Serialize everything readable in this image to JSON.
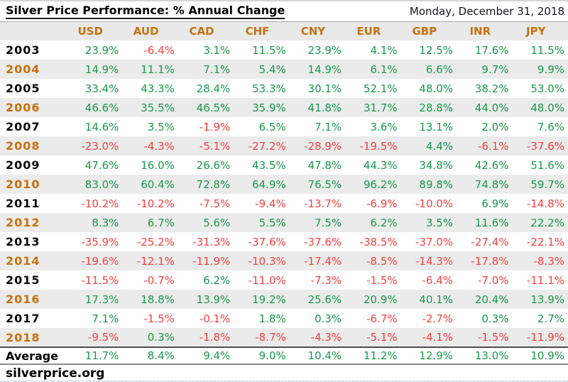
{
  "header": {
    "title": "Silver Price Performance: % Annual Change",
    "date": "Monday, December 31, 2018"
  },
  "chart_data": {
    "type": "table",
    "title": "Silver Price Performance: % Annual Change",
    "columns": [
      "USD",
      "AUD",
      "CAD",
      "CHF",
      "CNY",
      "EUR",
      "GBP",
      "INR",
      "JPY"
    ],
    "years": [
      "2003",
      "2004",
      "2005",
      "2006",
      "2007",
      "2008",
      "2009",
      "2010",
      "2011",
      "2012",
      "2013",
      "2014",
      "2015",
      "2016",
      "2017",
      "2018"
    ],
    "values": [
      [
        23.9,
        -6.4,
        3.1,
        11.5,
        23.9,
        4.1,
        12.5,
        17.6,
        11.5
      ],
      [
        14.9,
        11.1,
        7.1,
        5.4,
        14.9,
        6.1,
        6.6,
        9.7,
        9.9
      ],
      [
        33.4,
        43.3,
        28.4,
        53.3,
        30.1,
        52.1,
        48.0,
        38.2,
        53.0
      ],
      [
        46.6,
        35.5,
        46.5,
        35.9,
        41.8,
        31.7,
        28.8,
        44.0,
        48.0
      ],
      [
        14.6,
        3.5,
        -1.9,
        6.5,
        7.1,
        3.6,
        13.1,
        2.0,
        7.6
      ],
      [
        -23.0,
        -4.3,
        -5.1,
        -27.2,
        -28.9,
        -19.5,
        4.4,
        -6.1,
        -37.6
      ],
      [
        47.6,
        16.0,
        26.6,
        43.5,
        47.8,
        44.3,
        34.8,
        42.6,
        51.6
      ],
      [
        83.0,
        60.4,
        72.8,
        64.9,
        76.5,
        96.2,
        89.8,
        74.8,
        59.7
      ],
      [
        -10.2,
        -10.2,
        -7.5,
        -9.4,
        -13.7,
        -6.9,
        -10.0,
        6.9,
        -14.8
      ],
      [
        8.3,
        6.7,
        5.6,
        5.5,
        7.5,
        6.2,
        3.5,
        11.6,
        22.2
      ],
      [
        -35.9,
        -25.2,
        -31.3,
        -37.6,
        -37.6,
        -38.5,
        -37.0,
        -27.4,
        -22.1
      ],
      [
        -19.6,
        -12.1,
        -11.9,
        -10.3,
        -17.4,
        -8.5,
        -14.3,
        -17.8,
        -8.3
      ],
      [
        -11.5,
        -0.7,
        6.2,
        -11.0,
        -7.3,
        -1.5,
        -6.4,
        -7.0,
        -11.1
      ],
      [
        17.3,
        18.8,
        13.9,
        19.2,
        25.6,
        20.9,
        40.1,
        20.4,
        13.9
      ],
      [
        7.1,
        -1.5,
        -0.1,
        1.8,
        0.3,
        -6.7,
        -2.7,
        0.3,
        2.7
      ],
      [
        -9.5,
        0.3,
        -1.8,
        -8.7,
        -4.3,
        -5.1,
        -4.1,
        -1.5,
        -11.9
      ]
    ],
    "average_label": "Average",
    "average": [
      11.7,
      8.4,
      9.4,
      9.0,
      10.4,
      11.2,
      12.9,
      13.0,
      10.9
    ],
    "value_suffix": "%",
    "positive_color": "#189a4c",
    "negative_color": "#f8403e",
    "accent_color": "#c8710e",
    "alt_row_bg": "#ebebeb",
    "header_row_bg": "#e9e9e9"
  },
  "footer": {
    "site": "silverprice.org"
  }
}
